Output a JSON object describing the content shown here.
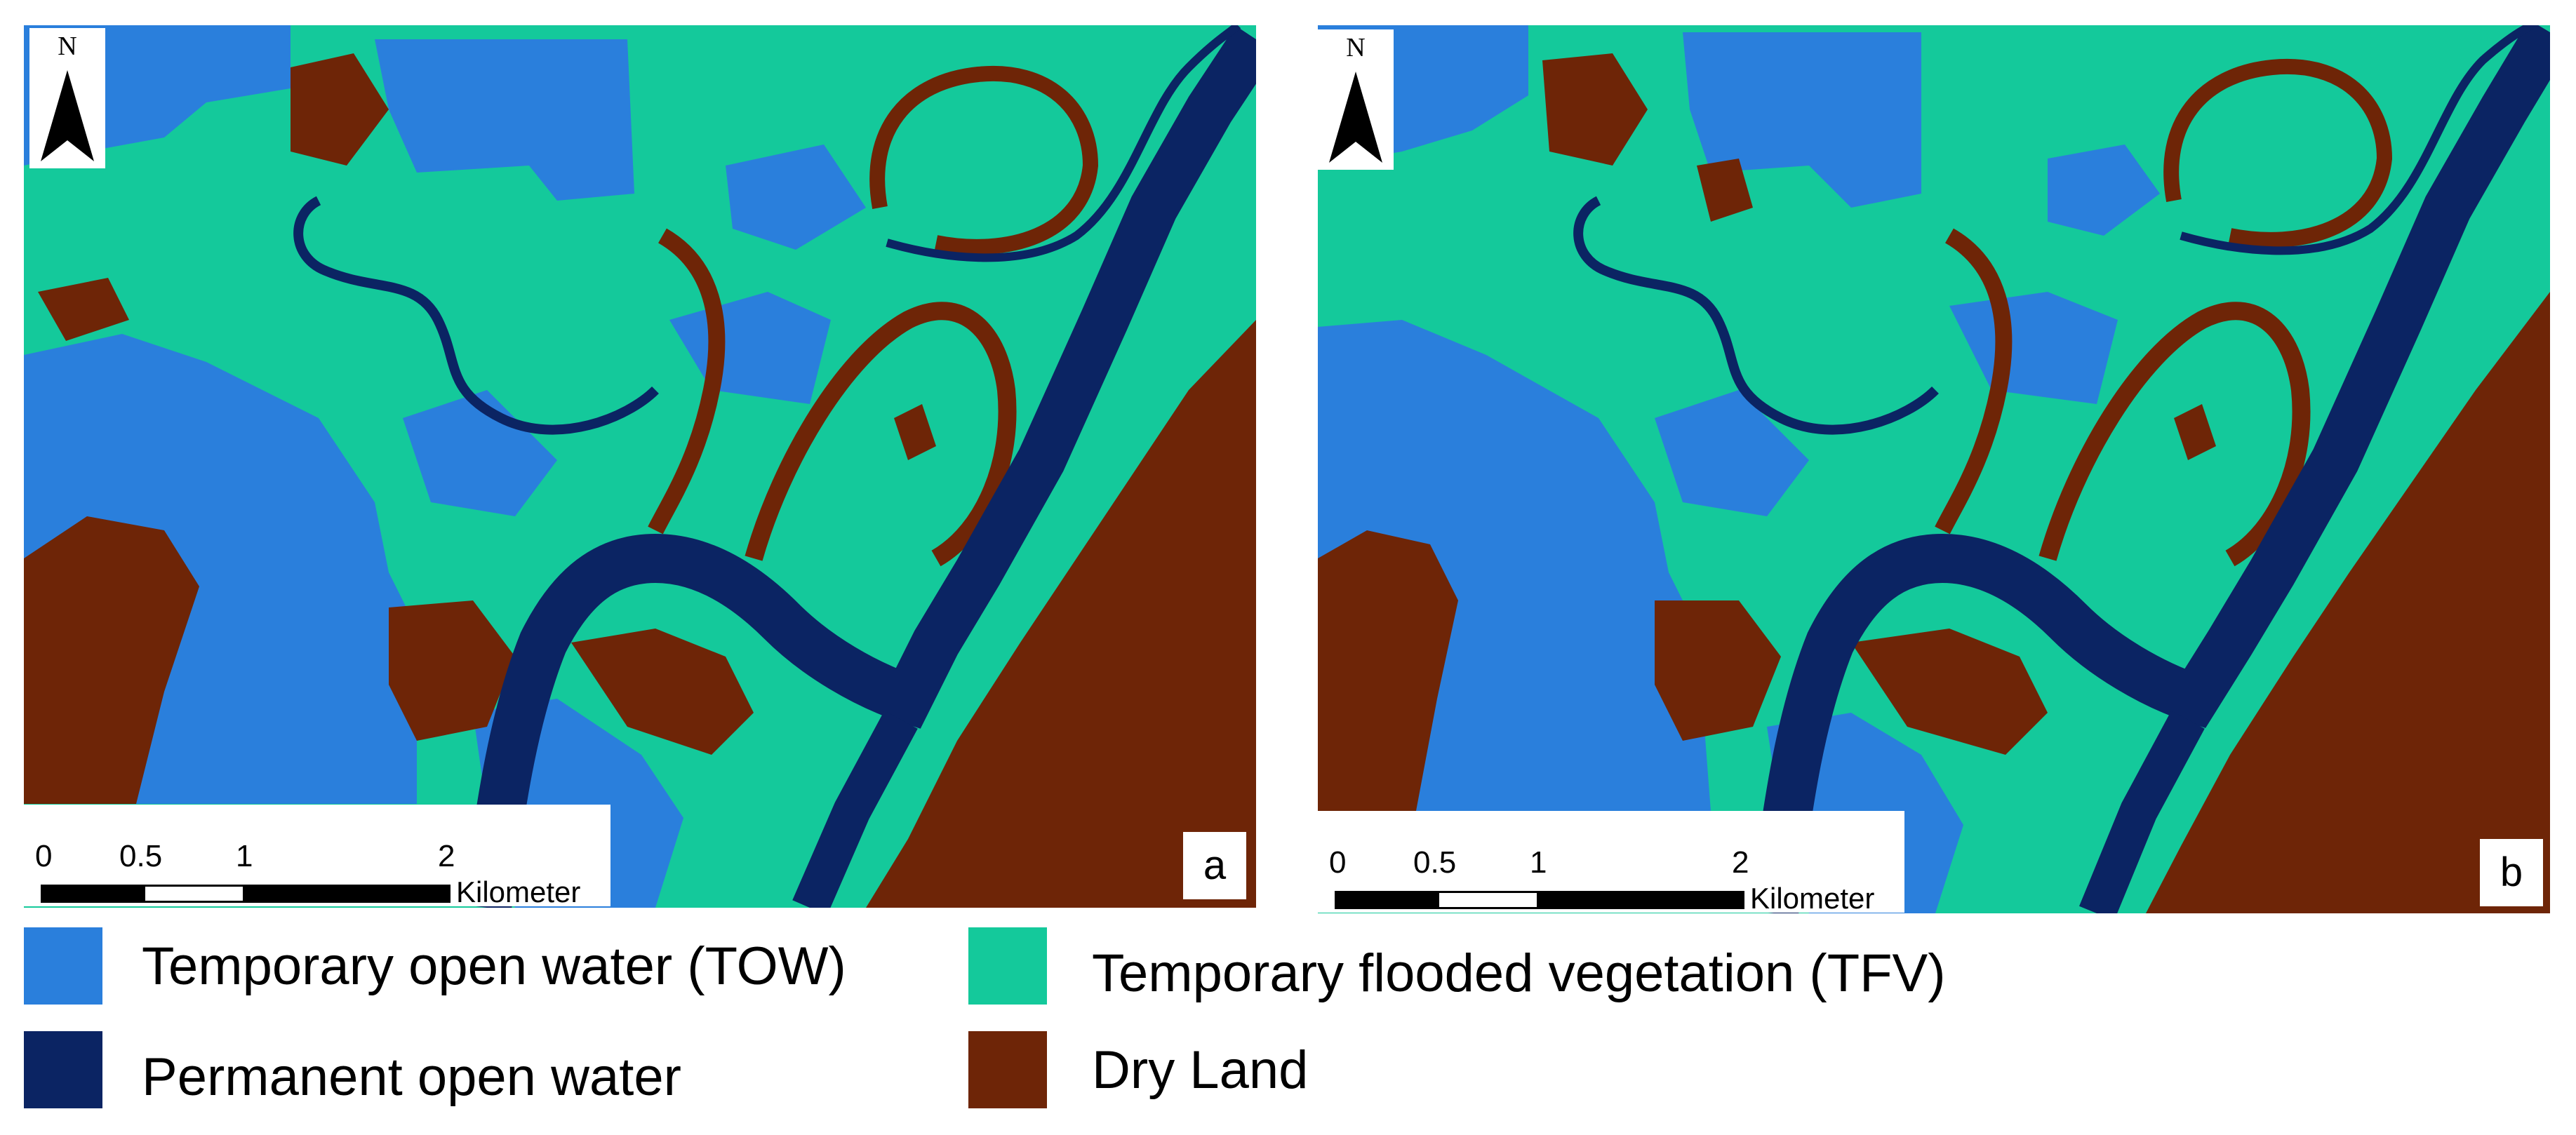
{
  "colors": {
    "temporary_open_water": "#2a7fdc",
    "permanent_open_water": "#0b2463",
    "temporary_flooded_vegetation": "#14c99b",
    "dry_land": "#6e2507"
  },
  "panels": [
    {
      "id": "a",
      "letter": "a",
      "north_label": "N",
      "scale": {
        "ticks": [
          "0",
          "0.5",
          "1",
          "2"
        ],
        "unit": "Kilometer"
      }
    },
    {
      "id": "b",
      "letter": "b",
      "north_label": "N",
      "scale": {
        "ticks": [
          "0",
          "0.5",
          "1",
          "2"
        ],
        "unit": "Kilometer"
      }
    }
  ],
  "legend": [
    {
      "label": "Temporary open water (TOW)",
      "color": "#2a7fdc"
    },
    {
      "label": "Permanent open water",
      "color": "#0b2463"
    },
    {
      "label": "Temporary flooded vegetation (TFV)",
      "color": "#14c99b"
    },
    {
      "label": "Dry Land",
      "color": "#6e2507"
    }
  ]
}
